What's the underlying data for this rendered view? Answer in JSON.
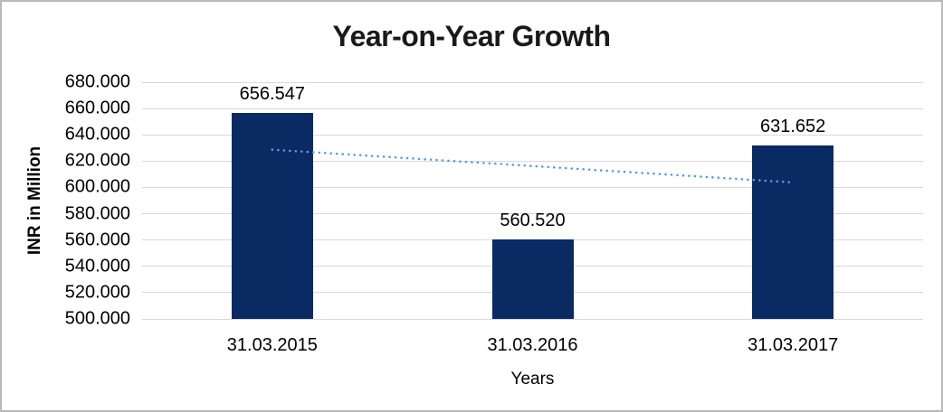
{
  "window": {
    "background": "#ffffff",
    "border_color": "#b9b9b9"
  },
  "chart_data": {
    "type": "bar",
    "title": "Year-on-Year Growth",
    "categories": [
      "31.03.2015",
      "31.03.2016",
      "31.03.2017"
    ],
    "values": [
      656.547,
      560.52,
      631.652
    ],
    "value_labels": [
      "656.547",
      "560.520",
      "631.652"
    ],
    "xlabel": "Years",
    "ylabel": "INR in Million",
    "ylim": [
      500,
      680
    ],
    "ytick_step": 20,
    "ytick_labels": [
      "680.000",
      "660.000",
      "640.000",
      "620.000",
      "600.000",
      "580.000",
      "560.000",
      "540.000",
      "520.000",
      "500.000"
    ],
    "grid": true,
    "legend": "none",
    "bar_color": "#0a2a63",
    "gridline_color": "#d9d9d9",
    "label_color": "#000000",
    "title_color": "#1a1a1a",
    "trendline": {
      "style": "dotted",
      "color": "#5b9bd5",
      "start_value": 628.7,
      "end_value": 603.8
    }
  }
}
